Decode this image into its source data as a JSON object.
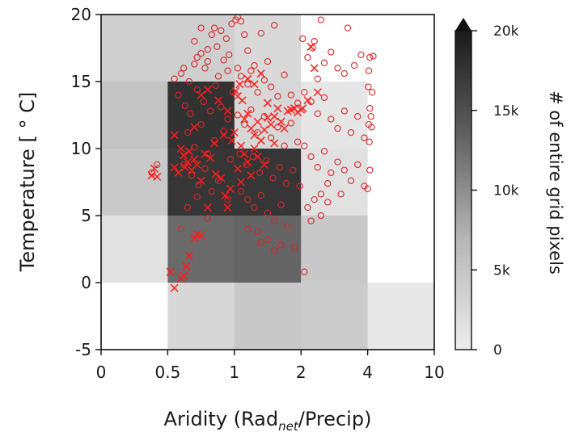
{
  "chart_data": {
    "type": "heatmap",
    "xlabel": {
      "pre": "Aridity (Rad",
      "sub": "net",
      "post": "/Precip)"
    },
    "ylabel": "Temperature [$^\\circ$C]",
    "ylabel_display": "Temperature [ ° C]",
    "x_bin_edges": [
      "0",
      "0.5",
      "1",
      "2",
      "4",
      "10"
    ],
    "y_bin_edges": [
      "-5",
      "0",
      "5",
      "10",
      "15",
      "20"
    ],
    "y_tick_labels": [
      "-5",
      "0",
      "5",
      "10",
      "15",
      "20"
    ],
    "y_range": [
      -5,
      20
    ],
    "grid_counts": [
      [
        4200,
        4200,
        3300,
        0,
        0
      ],
      [
        5200,
        17800,
        3500,
        2200,
        0
      ],
      [
        4700,
        17500,
        17500,
        2600,
        0
      ],
      [
        2500,
        13000,
        13500,
        4800,
        0
      ],
      [
        0,
        3500,
        4800,
        4500,
        2000
      ]
    ],
    "colorbar": {
      "label": "# of entire grid pixels",
      "ticks": [
        0,
        5000,
        10000,
        15000,
        20000
      ],
      "tick_labels": [
        "0",
        "5k",
        "10k",
        "15k",
        "20k"
      ],
      "range": [
        0,
        20000
      ],
      "extend": "max",
      "cmap": "Greys (light to dark)"
    },
    "series": [
      {
        "marker": "circle-open",
        "color": "#d62728",
        "points": [
          [
            0.55,
            15.2
          ],
          [
            0.6,
            15.6
          ],
          [
            0.62,
            16.0
          ],
          [
            0.66,
            15.0
          ],
          [
            0.7,
            16.3
          ],
          [
            0.72,
            16.8
          ],
          [
            0.75,
            17.1
          ],
          [
            0.78,
            16.0
          ],
          [
            0.8,
            17.4
          ],
          [
            0.83,
            18.5
          ],
          [
            0.85,
            19.0
          ],
          [
            0.87,
            17.6
          ],
          [
            0.9,
            18.8
          ],
          [
            0.92,
            16.6
          ],
          [
            0.94,
            18.2
          ],
          [
            0.96,
            17.0
          ],
          [
            0.98,
            19.3
          ],
          [
            0.7,
            18.0
          ],
          [
            0.75,
            19.0
          ],
          [
            0.8,
            16.5
          ],
          [
            0.88,
            15.4
          ],
          [
            0.95,
            15.8
          ],
          [
            0.58,
            14.0
          ],
          [
            0.63,
            13.2
          ],
          [
            0.67,
            12.6
          ],
          [
            0.72,
            14.4
          ],
          [
            0.77,
            13.5
          ],
          [
            0.82,
            12.8
          ],
          [
            0.86,
            14.7
          ],
          [
            0.9,
            13.1
          ],
          [
            0.95,
            12.2
          ],
          [
            0.99,
            14.2
          ],
          [
            0.65,
            11.2
          ],
          [
            0.7,
            10.1
          ],
          [
            0.75,
            11.8
          ],
          [
            0.8,
            9.6
          ],
          [
            0.85,
            10.6
          ],
          [
            0.92,
            11.3
          ],
          [
            0.97,
            9.2
          ],
          [
            0.62,
            8.8
          ],
          [
            0.68,
            8.0
          ],
          [
            0.73,
            7.3
          ],
          [
            0.78,
            8.5
          ],
          [
            0.83,
            6.8
          ],
          [
            0.88,
            7.6
          ],
          [
            0.95,
            6.2
          ],
          [
            0.65,
            5.6
          ],
          [
            0.72,
            6.4
          ],
          [
            0.8,
            4.8
          ],
          [
            0.6,
            4.0
          ],
          [
            1.02,
            19.6
          ],
          [
            1.05,
            19.8
          ],
          [
            1.1,
            19.5
          ],
          [
            1.15,
            18.5
          ],
          [
            1.2,
            17.3
          ],
          [
            1.3,
            16.2
          ],
          [
            1.4,
            18.6
          ],
          [
            1.5,
            16.5
          ],
          [
            1.6,
            19.2
          ],
          [
            1.05,
            16.0
          ],
          [
            1.1,
            15.4
          ],
          [
            1.2,
            14.8
          ],
          [
            1.25,
            15.8
          ],
          [
            1.35,
            14.2
          ],
          [
            1.45,
            15.1
          ],
          [
            1.55,
            14.6
          ],
          [
            1.65,
            13.9
          ],
          [
            1.75,
            15.5
          ],
          [
            1.85,
            14.0
          ],
          [
            1.95,
            13.4
          ],
          [
            1.05,
            12.5
          ],
          [
            1.15,
            11.8
          ],
          [
            1.25,
            12.9
          ],
          [
            1.35,
            11.2
          ],
          [
            1.45,
            12.4
          ],
          [
            1.55,
            10.8
          ],
          [
            1.65,
            11.6
          ],
          [
            1.75,
            10.2
          ],
          [
            1.85,
            11.9
          ],
          [
            1.95,
            10.5
          ],
          [
            1.08,
            9.6
          ],
          [
            1.18,
            8.8
          ],
          [
            1.28,
            9.4
          ],
          [
            1.38,
            8.2
          ],
          [
            1.48,
            9.1
          ],
          [
            1.58,
            7.8
          ],
          [
            1.68,
            8.6
          ],
          [
            1.78,
            7.4
          ],
          [
            1.88,
            8.4
          ],
          [
            1.98,
            7.2
          ],
          [
            1.1,
            6.8
          ],
          [
            1.2,
            6.2
          ],
          [
            1.3,
            5.6
          ],
          [
            1.4,
            6.5
          ],
          [
            1.5,
            5.2
          ],
          [
            1.6,
            4.6
          ],
          [
            1.7,
            5.8
          ],
          [
            1.8,
            4.2
          ],
          [
            1.2,
            4.0
          ],
          [
            1.35,
            3.8
          ],
          [
            1.5,
            3.2
          ],
          [
            1.7,
            2.8
          ],
          [
            1.4,
            3.0
          ],
          [
            1.9,
            2.6
          ],
          [
            2.1,
            0.8
          ],
          [
            1.6,
            2.4
          ],
          [
            2.05,
            18.2
          ],
          [
            2.2,
            16.8
          ],
          [
            2.35,
            17.5
          ],
          [
            2.5,
            15.2
          ],
          [
            2.7,
            16.4
          ],
          [
            2.9,
            17.2
          ],
          [
            3.1,
            16.0
          ],
          [
            3.3,
            15.6
          ],
          [
            3.6,
            16.2
          ],
          [
            3.8,
            17.0
          ],
          [
            2.4,
            18.0
          ],
          [
            2.6,
            19.6
          ],
          [
            3.4,
            19.0
          ],
          [
            4.2,
            16.8
          ],
          [
            4.5,
            16.9
          ],
          [
            4.1,
            15.8
          ],
          [
            2.1,
            14.2
          ],
          [
            2.3,
            13.5
          ],
          [
            2.5,
            12.6
          ],
          [
            2.7,
            13.8
          ],
          [
            2.9,
            12.2
          ],
          [
            3.1,
            11.5
          ],
          [
            3.3,
            12.8
          ],
          [
            3.5,
            11.2
          ],
          [
            3.7,
            12.4
          ],
          [
            3.9,
            10.8
          ],
          [
            4.1,
            11.8
          ],
          [
            4.2,
            13.0
          ],
          [
            4.3,
            12.4
          ],
          [
            4.4,
            14.2
          ],
          [
            4.35,
            11.6
          ],
          [
            4.15,
            10.5
          ],
          [
            4.05,
            14.6
          ],
          [
            2.1,
            10.2
          ],
          [
            2.3,
            9.4
          ],
          [
            2.5,
            8.6
          ],
          [
            2.7,
            9.8
          ],
          [
            2.9,
            8.2
          ],
          [
            3.1,
            9.0
          ],
          [
            3.3,
            8.4
          ],
          [
            3.5,
            7.6
          ],
          [
            3.7,
            8.8
          ],
          [
            3.9,
            7.2
          ],
          [
            4.2,
            8.4
          ],
          [
            4.0,
            7.0
          ],
          [
            3.2,
            6.6
          ],
          [
            2.8,
            7.4
          ],
          [
            2.6,
            6.6
          ],
          [
            2.4,
            6.2
          ],
          [
            2.2,
            5.6
          ],
          [
            2.3,
            4.6
          ],
          [
            2.6,
            5.0
          ],
          [
            2.8,
            6.0
          ],
          [
            0.38,
            8.2
          ],
          [
            0.42,
            8.8
          ]
        ]
      },
      {
        "marker": "x",
        "color": "#ff1a1a",
        "points": [
          [
            0.38,
            8.0
          ],
          [
            0.4,
            8.5
          ],
          [
            0.42,
            7.9
          ],
          [
            0.52,
            0.8
          ],
          [
            0.55,
            -0.4
          ],
          [
            0.6,
            0.3
          ],
          [
            0.62,
            0.5
          ],
          [
            0.64,
            1.2
          ],
          [
            0.66,
            2.0
          ],
          [
            0.7,
            3.3
          ],
          [
            0.72,
            3.6
          ],
          [
            0.75,
            3.5
          ],
          [
            0.62,
            9.5
          ],
          [
            0.63,
            8.6
          ],
          [
            0.65,
            9.0
          ],
          [
            0.68,
            8.4
          ],
          [
            0.7,
            9.2
          ],
          [
            0.72,
            8.8
          ],
          [
            0.66,
            9.8
          ],
          [
            0.6,
            10.0
          ],
          [
            0.55,
            8.6
          ],
          [
            0.58,
            8.2
          ],
          [
            0.75,
            7.6
          ],
          [
            0.78,
            9.6
          ],
          [
            0.82,
            9.3
          ],
          [
            0.86,
            8.1
          ],
          [
            0.9,
            7.8
          ],
          [
            0.93,
            6.5
          ],
          [
            0.97,
            7.0
          ],
          [
            0.95,
            5.6
          ],
          [
            0.8,
            5.6
          ],
          [
            0.55,
            11.0
          ],
          [
            0.7,
            11.6
          ],
          [
            0.85,
            10.4
          ],
          [
            0.92,
            11.0
          ],
          [
            0.75,
            14.0
          ],
          [
            0.8,
            14.4
          ],
          [
            0.88,
            13.6
          ],
          [
            0.95,
            12.8
          ],
          [
            0.98,
            10.6
          ],
          [
            1.02,
            14.3
          ],
          [
            1.05,
            13.9
          ],
          [
            1.08,
            14.8
          ],
          [
            1.12,
            13.6
          ],
          [
            1.15,
            12.2
          ],
          [
            1.2,
            12.6
          ],
          [
            1.25,
            11.5
          ],
          [
            1.3,
            11.0
          ],
          [
            1.35,
            12.0
          ],
          [
            1.4,
            10.6
          ],
          [
            1.45,
            11.4
          ],
          [
            1.5,
            12.3
          ],
          [
            1.55,
            11.8
          ],
          [
            1.6,
            12.4
          ],
          [
            1.65,
            13.0
          ],
          [
            1.7,
            12.0
          ],
          [
            1.75,
            11.5
          ],
          [
            1.8,
            12.8
          ],
          [
            1.85,
            12.9
          ],
          [
            1.9,
            13.0
          ],
          [
            1.95,
            12.7
          ],
          [
            2.0,
            12.9
          ],
          [
            2.05,
            13.0
          ],
          [
            1.1,
            10.2
          ],
          [
            1.15,
            9.6
          ],
          [
            1.2,
            9.0
          ],
          [
            1.05,
            8.5
          ],
          [
            1.1,
            7.5
          ],
          [
            1.25,
            8.0
          ],
          [
            1.3,
            10.0
          ],
          [
            1.35,
            9.4
          ],
          [
            1.4,
            15.6
          ],
          [
            1.3,
            14.8
          ],
          [
            1.2,
            15.2
          ],
          [
            1.5,
            13.4
          ],
          [
            1.6,
            10.4
          ],
          [
            2.3,
            17.6
          ],
          [
            2.4,
            16.0
          ],
          [
            2.5,
            14.2
          ],
          [
            2.2,
            13.6
          ],
          [
            1.45,
            8.8
          ],
          [
            1.0,
            11.2
          ]
        ]
      }
    ]
  }
}
